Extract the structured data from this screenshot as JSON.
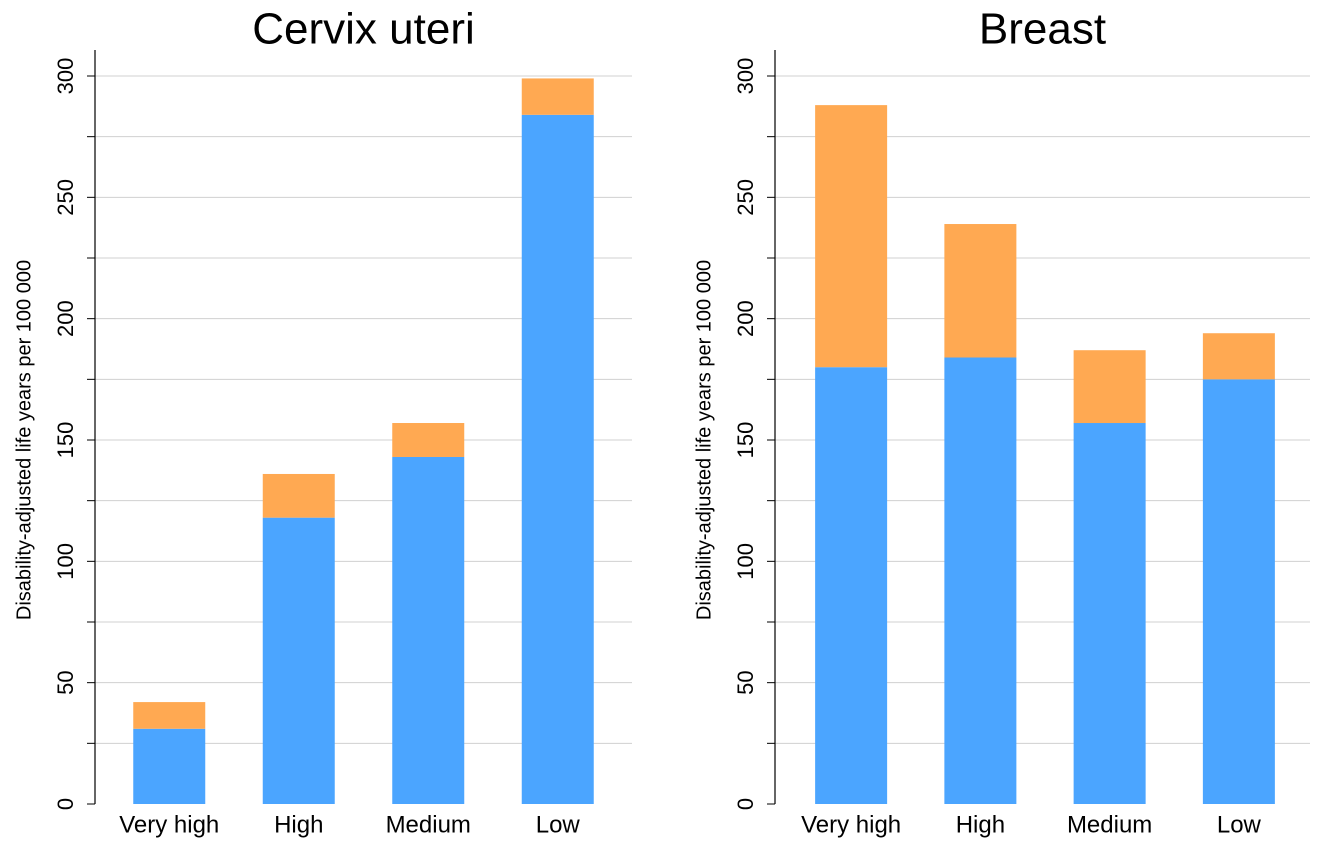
{
  "chart_data": [
    {
      "type": "stacked_bar",
      "title": "Cervix uteri",
      "y_label": "Disability-adjusted life years per 100 000",
      "categories": [
        "Very high",
        "High",
        "Medium",
        "Low"
      ],
      "series": [
        {
          "color": "#4ba5ff",
          "values": [
            31,
            118,
            143,
            284
          ]
        },
        {
          "color": "#ffa952",
          "values": [
            11,
            18,
            14,
            15
          ]
        }
      ],
      "ylim": [
        0,
        300
      ],
      "yticks": [
        0,
        50,
        100,
        150,
        200,
        250,
        300
      ],
      "minor_yticks": [
        25,
        75,
        125,
        175,
        225,
        275
      ],
      "grid": true
    },
    {
      "type": "stacked_bar",
      "title": "Breast",
      "y_label": "Disability-adjusted life years per 100 000",
      "categories": [
        "Very high",
        "High",
        "Medium",
        "Low"
      ],
      "series": [
        {
          "color": "#4ba5ff",
          "values": [
            180,
            184,
            157,
            175
          ]
        },
        {
          "color": "#ffa952",
          "values": [
            108,
            55,
            30,
            19
          ]
        }
      ],
      "ylim": [
        0,
        300
      ],
      "yticks": [
        0,
        50,
        100,
        150,
        200,
        250,
        300
      ],
      "minor_yticks": [
        25,
        75,
        125,
        175,
        225,
        275
      ],
      "grid": true
    }
  ]
}
